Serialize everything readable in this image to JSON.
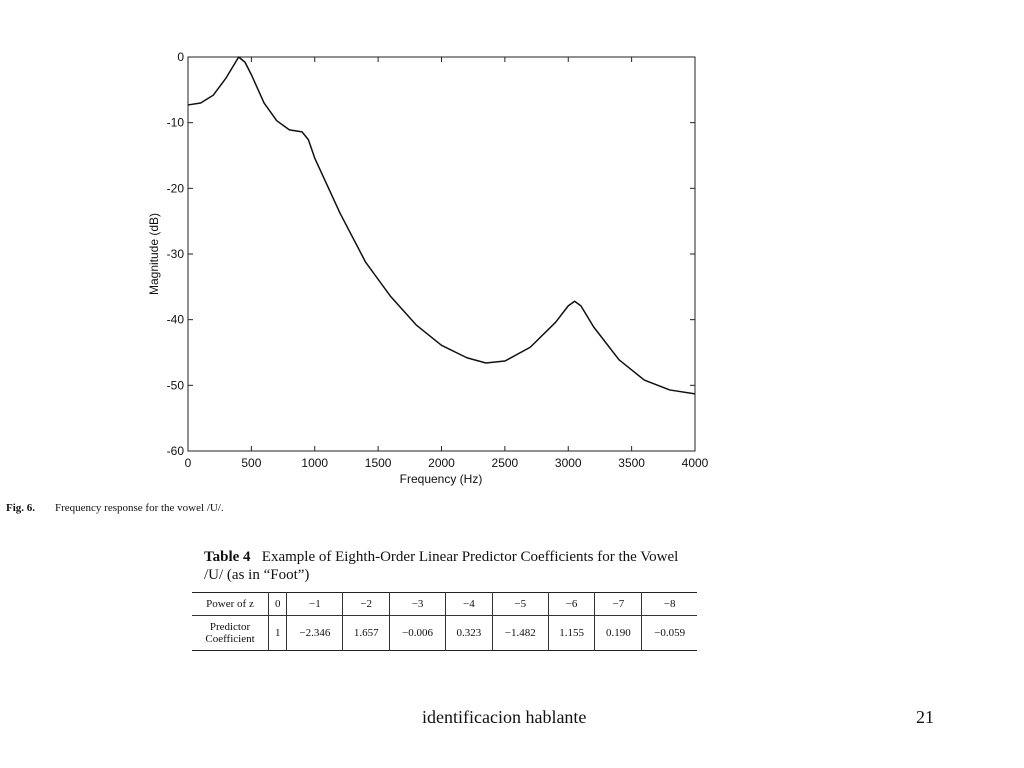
{
  "chart_data": {
    "type": "line",
    "x_label": "Frequency (Hz)",
    "y_label": "Magnitude (dB)",
    "x": [
      0,
      100,
      200,
      300,
      400,
      450,
      500,
      600,
      700,
      800,
      900,
      950,
      1000,
      1200,
      1400,
      1600,
      1800,
      2000,
      2200,
      2350,
      2500,
      2700,
      2900,
      3000,
      3050,
      3100,
      3200,
      3400,
      3600,
      3800,
      4000
    ],
    "values": [
      -7.3,
      -7.0,
      -5.8,
      -3.2,
      0,
      -0.8,
      -2.7,
      -7.0,
      -9.7,
      -11.1,
      -11.4,
      -12.6,
      -15.4,
      -23.8,
      -31.2,
      -36.5,
      -40.8,
      -43.9,
      -45.8,
      -46.6,
      -46.3,
      -44.2,
      -40.4,
      -37.9,
      -37.2,
      -37.9,
      -41.1,
      -46.1,
      -49.2,
      -50.7,
      -51.3
    ],
    "color": "#111111",
    "xlim": [
      0,
      4000
    ],
    "xticks": [
      0,
      500,
      1000,
      1500,
      2000,
      2500,
      3000,
      3500,
      4000
    ],
    "ylim": [
      -60,
      0
    ],
    "yticks": [
      0,
      -10,
      -20,
      -30,
      -40,
      -50,
      -60
    ]
  },
  "figure_caption": {
    "label": "Fig. 6.",
    "text": "Frequency response for the vowel /U/."
  },
  "table": {
    "label": "Table 4",
    "title": "Example of Eighth-Order Linear Predictor Coefficients for the Vowel /U/ (as in “Foot”)",
    "rows": [
      [
        "Power of z",
        "0",
        "−1",
        "−2",
        "−3",
        "−4",
        "−5",
        "−6",
        "−7",
        "−8"
      ],
      [
        "Predictor Coefficient",
        "1",
        "−2.346",
        "1.657",
        "−0.006",
        "0.323",
        "−1.482",
        "1.155",
        "0.190",
        "−0.059"
      ]
    ]
  },
  "footer": {
    "text": "identificacion hablante",
    "page": "21"
  }
}
